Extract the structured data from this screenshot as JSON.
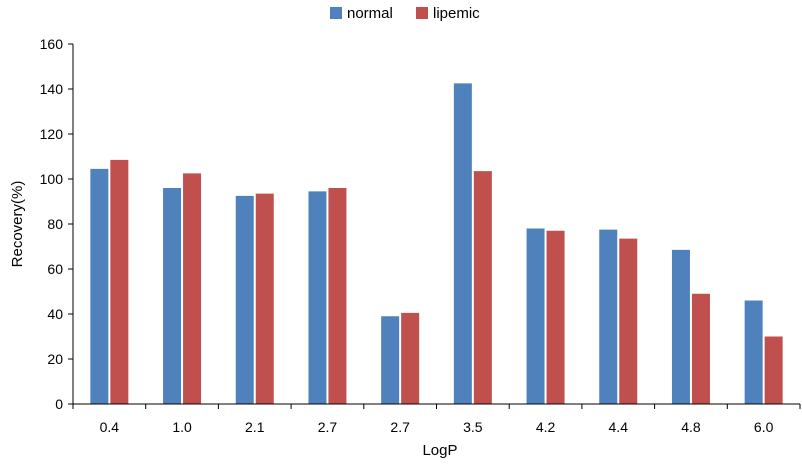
{
  "chart_data": {
    "type": "bar",
    "title": "",
    "xlabel": "LogP",
    "ylabel": "Recovery(%)",
    "ylim": [
      0,
      160
    ],
    "yticks": [
      "0",
      "20",
      "40",
      "60",
      "80",
      "100",
      "120",
      "140",
      "160"
    ],
    "categories": [
      "0.4",
      "1.0",
      "2.1",
      "2.7",
      "2.7",
      "3.5",
      "4.2",
      "4.4",
      "4.8",
      "6.0"
    ],
    "series": [
      {
        "name": "normal",
        "color": "#4F81BD",
        "values": [
          104.5,
          96,
          92.5,
          94.5,
          39,
          142.5,
          78,
          77.5,
          68.5,
          46
        ]
      },
      {
        "name": "lipemic",
        "color": "#C0504D",
        "values": [
          108.5,
          102.5,
          93.5,
          96,
          40.5,
          103.5,
          77,
          73.5,
          49,
          30
        ]
      }
    ],
    "legend_position": "top-center",
    "grid": false
  }
}
